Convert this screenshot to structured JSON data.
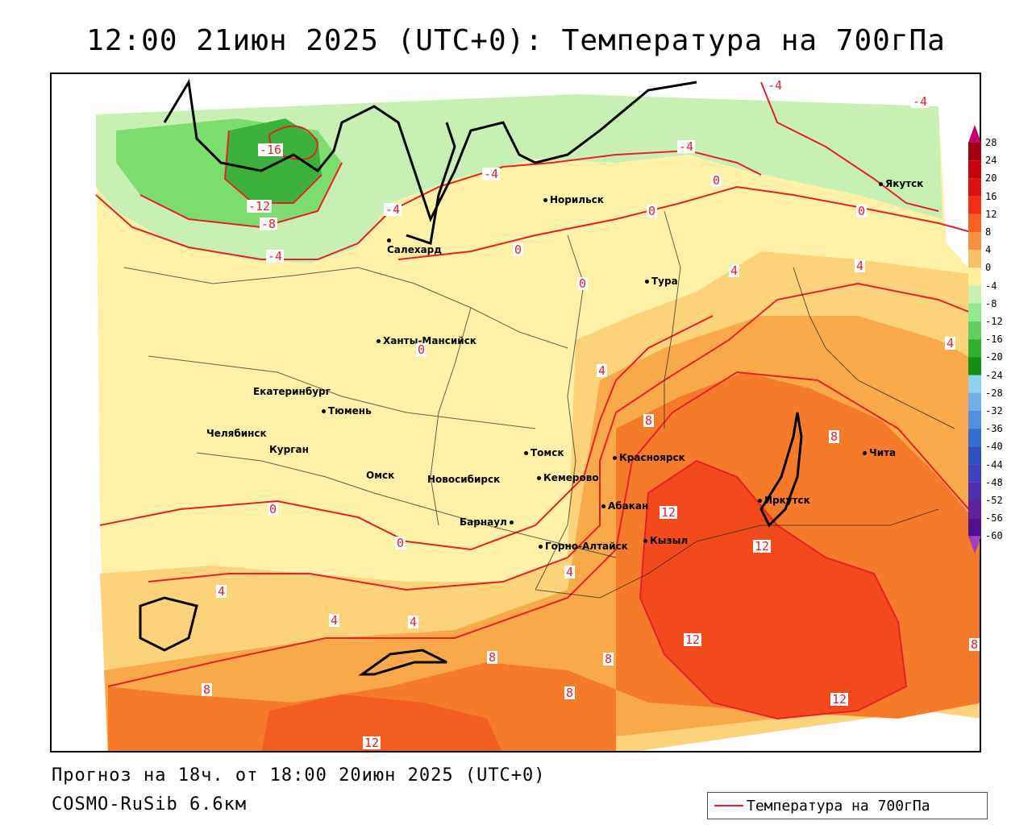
{
  "title": "12:00 21июн 2025 (UTC+0): Температура на 700гПа",
  "footer": {
    "forecast": "Прогноз на 18ч. от 18:00 20июн 2025 (UTC+0)",
    "model": "COSMO-RuSib 6.6км"
  },
  "legend": {
    "label": "Температура на 700гПа",
    "line_color": "#e6202a"
  },
  "colorbar": {
    "labels": [
      "28",
      "24",
      "20",
      "16",
      "12",
      "8",
      "4",
      "0",
      "-4",
      "-8",
      "-12",
      "-16",
      "-20",
      "-24",
      "-28",
      "-32",
      "-36",
      "-40",
      "-44",
      "-48",
      "-52",
      "-56",
      "-60"
    ],
    "colors": [
      "#a00010",
      "#c80010",
      "#e01010",
      "#f03010",
      "#f86020",
      "#f89040",
      "#f8c060",
      "#fff0a0",
      "#c8f0b0",
      "#90e890",
      "#60d060",
      "#30b030",
      "#109010",
      "#90d0f0",
      "#70b0e8",
      "#5090e0",
      "#3070d0",
      "#3050c0",
      "#4040c0",
      "#5030b0",
      "#6020a0",
      "#501090",
      "#400080"
    ]
  },
  "cities": [
    {
      "name": "Норильск"
    },
    {
      "name": "Якутск"
    },
    {
      "name": "Салехард"
    },
    {
      "name": "Тура"
    },
    {
      "name": "Ханты-Мансийск"
    },
    {
      "name": "Екатеринбург"
    },
    {
      "name": "Тюмень"
    },
    {
      "name": "Челябинск"
    },
    {
      "name": "Курган"
    },
    {
      "name": "Омск"
    },
    {
      "name": "Томск"
    },
    {
      "name": "Новосибирск"
    },
    {
      "name": "Кемерово"
    },
    {
      "name": "Красноярск"
    },
    {
      "name": "Абакан"
    },
    {
      "name": "Барнаул"
    },
    {
      "name": "Горно-Алтайск"
    },
    {
      "name": "Кызыл"
    },
    {
      "name": "Иркутск"
    },
    {
      "name": "Чита"
    }
  ],
  "contour_labels": [
    "-4",
    "-4",
    "-16",
    "-12",
    "-8",
    "-4",
    "-4",
    "-4",
    "-4",
    "0",
    "0",
    "0",
    "0",
    "4",
    "4",
    "0",
    "4",
    "4",
    "0",
    "4",
    "8",
    "8",
    "0",
    "0",
    "12",
    "12",
    "4",
    "4",
    "4",
    "8",
    "8",
    "8",
    "12",
    "8",
    "8",
    "12",
    "12"
  ],
  "colors": {
    "contour": "#e6202a",
    "bg_yellow": "#fff2a8",
    "bg_light_orange": "#fcd27a",
    "bg_orange": "#f9a84a",
    "bg_dark_orange": "#f57a2a",
    "bg_red_orange": "#f24a1c",
    "bg_light_green": "#c8f0b4",
    "bg_green": "#7ddc6e",
    "bg_dark_green": "#3cb23c"
  }
}
